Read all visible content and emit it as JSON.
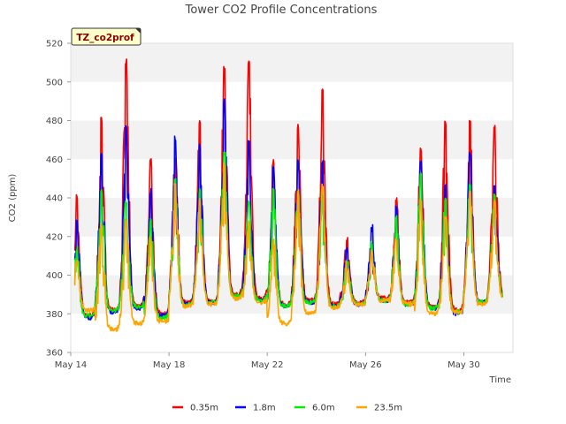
{
  "chart_data": {
    "type": "line",
    "title": "Tower CO2 Profile Concentrations",
    "xlabel": "Time",
    "ylabel": "CO2 (ppm)",
    "ylim": [
      360,
      520
    ],
    "xlim": [
      "2024-05-14",
      "2024-06-01"
    ],
    "yticks": [
      360,
      380,
      400,
      420,
      440,
      460,
      480,
      500,
      520
    ],
    "xticks": [
      {
        "date": "2024-05-14",
        "label": "May 14"
      },
      {
        "date": "2024-05-18",
        "label": "May 18"
      },
      {
        "date": "2024-05-22",
        "label": "May 22"
      },
      {
        "date": "2024-05-26",
        "label": "May 26"
      },
      {
        "date": "2024-05-30",
        "label": "May 30"
      }
    ],
    "grid": "horizontal bands",
    "legend": "bottom",
    "annotation": "TZ_co2prof",
    "daily_peaks_dates": [
      "2024-05-14",
      "2024-05-15",
      "2024-05-16",
      "2024-05-17",
      "2024-05-18",
      "2024-05-19",
      "2024-05-20",
      "2024-05-21",
      "2024-05-22",
      "2024-05-23",
      "2024-05-24",
      "2024-05-25",
      "2024-05-26",
      "2024-05-27",
      "2024-05-28",
      "2024-05-29",
      "2024-05-30",
      "2024-05-31"
    ],
    "series": [
      {
        "name": "0.35m",
        "color": "#ff0000",
        "peaks": [
          442,
          482,
          512,
          462,
          462,
          480,
          509,
          512,
          460,
          478,
          497,
          420,
          412,
          440,
          466,
          480,
          480,
          478
        ],
        "troughs": [
          379,
          382,
          384,
          380,
          386,
          386,
          390,
          388,
          385,
          387,
          385,
          386,
          388,
          386,
          384,
          382,
          386,
          390
        ]
      },
      {
        "name": "1.8m",
        "color": "#0000ff",
        "peaks": [
          430,
          465,
          478,
          445,
          472,
          468,
          492,
          470,
          456,
          460,
          460,
          415,
          425,
          436,
          460,
          447,
          464,
          447
        ],
        "troughs": [
          378,
          381,
          383,
          379,
          385,
          386,
          389,
          387,
          384,
          386,
          384,
          385,
          387,
          385,
          383,
          380,
          386,
          389
        ]
      },
      {
        "name": "6.0m",
        "color": "#00ee00",
        "peaks": [
          415,
          445,
          440,
          430,
          450,
          445,
          465,
          440,
          446,
          445,
          448,
          408,
          418,
          432,
          455,
          440,
          448,
          442
        ],
        "troughs": [
          379,
          382,
          384,
          378,
          385,
          386,
          389,
          387,
          384,
          386,
          384,
          385,
          387,
          385,
          383,
          381,
          386,
          389
        ]
      },
      {
        "name": "23.5m",
        "color": "#ffa500",
        "peaks": [
          408,
          428,
          430,
          420,
          448,
          440,
          458,
          428,
          420,
          445,
          448,
          405,
          414,
          420,
          440,
          432,
          444,
          440
        ],
        "troughs": [
          382,
          372,
          375,
          376,
          384,
          385,
          388,
          386,
          375,
          380,
          383,
          385,
          387,
          385,
          380,
          381,
          385,
          388
        ]
      }
    ]
  }
}
